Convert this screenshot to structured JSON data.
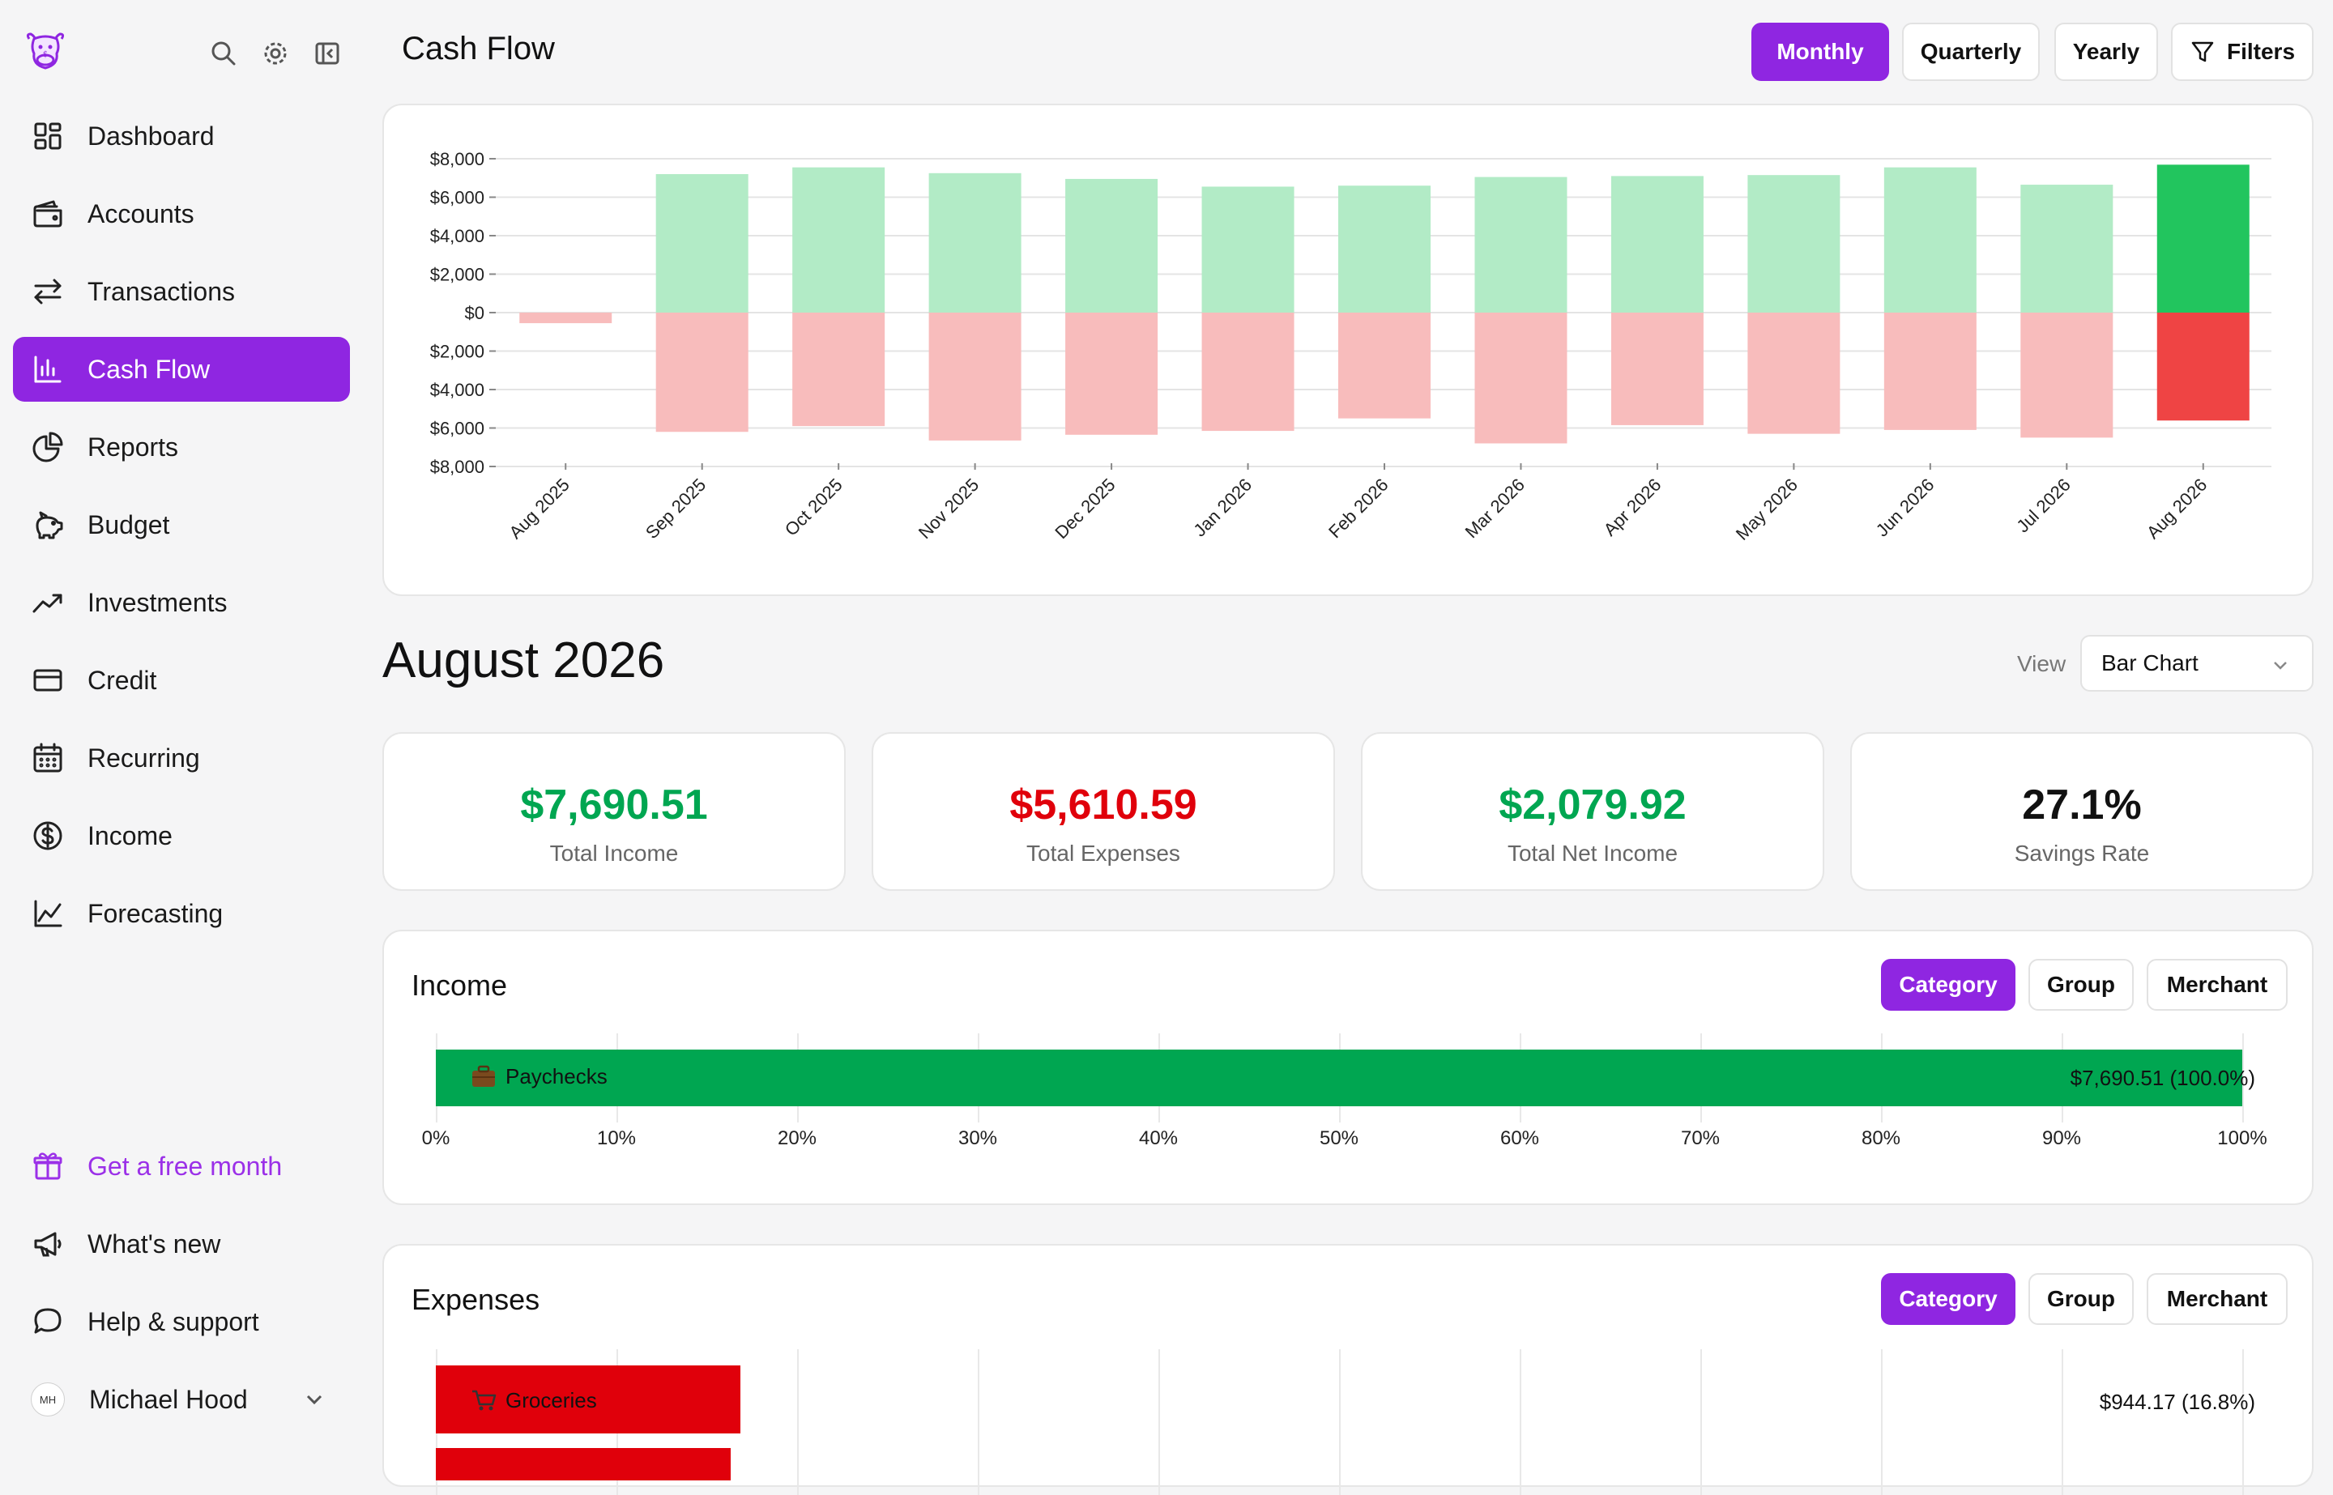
{
  "sidebar": {
    "nav": [
      {
        "label": "Dashboard",
        "icon": "dashboard-icon",
        "active": false
      },
      {
        "label": "Accounts",
        "icon": "wallet-icon",
        "active": false
      },
      {
        "label": "Transactions",
        "icon": "arrows-exchange-icon",
        "active": false
      },
      {
        "label": "Cash Flow",
        "icon": "bar-chart-icon",
        "active": true
      },
      {
        "label": "Reports",
        "icon": "pie-chart-icon",
        "active": false
      },
      {
        "label": "Budget",
        "icon": "piggy-bank-icon",
        "active": false
      },
      {
        "label": "Investments",
        "icon": "trending-up-icon",
        "active": false
      },
      {
        "label": "Credit",
        "icon": "credit-card-icon",
        "active": false
      },
      {
        "label": "Recurring",
        "icon": "calendar-icon",
        "active": false
      },
      {
        "label": "Income",
        "icon": "dollar-circle-icon",
        "active": false
      },
      {
        "label": "Forecasting",
        "icon": "line-chart-icon",
        "active": false
      }
    ],
    "promo": {
      "label": "Get a free month",
      "icon": "gift-icon"
    },
    "whats_new": {
      "label": "What's new",
      "icon": "megaphone-icon"
    },
    "help": {
      "label": "Help & support",
      "icon": "chat-bubble-icon"
    },
    "user": {
      "initials": "MH",
      "name": "Michael Hood"
    }
  },
  "header": {
    "title": "Cash Flow",
    "periods": [
      "Monthly",
      "Quarterly",
      "Yearly"
    ],
    "active_period": "Monthly",
    "filters_label": "Filters"
  },
  "colors": {
    "accent": "#8f26e1",
    "income_light": "#b2ebc6",
    "expense_light": "#f8bcbc",
    "income_strong": "#22c55e",
    "expense_strong": "#ef4444",
    "positive_text": "#00a651",
    "negative_text": "#e0000b"
  },
  "chart_data": {
    "type": "bar",
    "categories": [
      "Aug 2025",
      "Sep 2025",
      "Oct 2025",
      "Nov 2025",
      "Dec 2025",
      "Jan 2026",
      "Feb 2026",
      "Mar 2026",
      "Apr 2026",
      "May 2026",
      "Jun 2026",
      "Jul 2026",
      "Aug 2026"
    ],
    "series": [
      {
        "values": [
          0,
          7200,
          7550,
          7250,
          6950,
          6550,
          6600,
          7050,
          7100,
          7150,
          7550,
          6650,
          7690.51
        ]
      },
      {
        "values": [
          -550,
          -6200,
          -5900,
          -6650,
          -6350,
          -6150,
          -5500,
          -6800,
          -5850,
          -6300,
          -6100,
          -6500,
          -5610.59
        ]
      }
    ],
    "yticks": [
      "$8,000",
      "$6,000",
      "$4,000",
      "$2,000",
      "$0",
      "$2,000",
      "$4,000",
      "$6,000",
      "$8,000"
    ],
    "ylim": [
      -8000,
      8000
    ],
    "highlighted": "Aug 2026",
    "grid": true
  },
  "month": {
    "title": "August 2026",
    "view_label": "View",
    "view_value": "Bar Chart"
  },
  "stats": [
    {
      "value": "$7,690.51",
      "label": "Total Income",
      "tone": "positive"
    },
    {
      "value": "$5,610.59",
      "label": "Total Expenses",
      "tone": "negative"
    },
    {
      "value": "$2,079.92",
      "label": "Total Net Income",
      "tone": "positive"
    },
    {
      "value": "27.1%",
      "label": "Savings Rate",
      "tone": "neutral"
    }
  ],
  "income_section": {
    "title": "Income",
    "tabs": [
      "Category",
      "Group",
      "Merchant"
    ],
    "active_tab": "Category",
    "rows": [
      {
        "label": "Paychecks",
        "icon": "briefcase-icon",
        "value": "$7,690.51 (100.0%)",
        "percent": 100
      }
    ],
    "xticks": [
      "0%",
      "10%",
      "20%",
      "30%",
      "40%",
      "50%",
      "60%",
      "70%",
      "80%",
      "90%",
      "100%"
    ]
  },
  "expenses_section": {
    "title": "Expenses",
    "tabs": [
      "Category",
      "Group",
      "Merchant"
    ],
    "active_tab": "Category",
    "rows": [
      {
        "label": "Groceries",
        "icon": "cart-icon",
        "value": "$944.17 (16.8%)",
        "percent": 16.8
      }
    ]
  }
}
